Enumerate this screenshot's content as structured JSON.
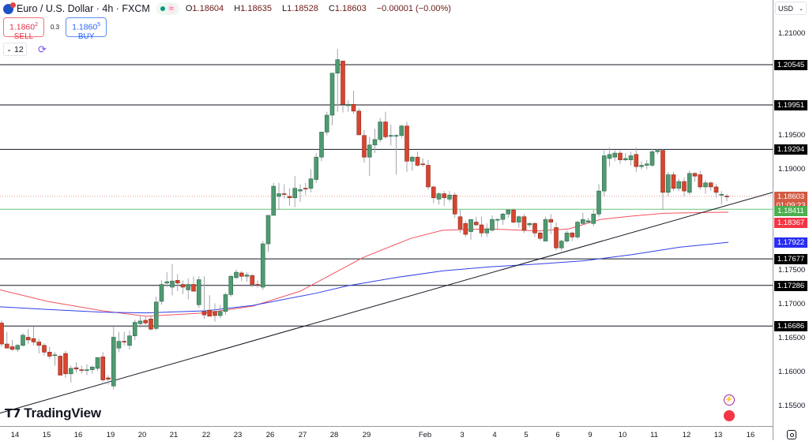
{
  "header": {
    "symbol_title": "Euro / U.S. Dollar · 4h · FXCM",
    "market_status_icon": "market-open-dot",
    "ohlc": {
      "o_label": "O",
      "o": "1.18604",
      "h_label": "H",
      "h": "1.18635",
      "l_label": "L",
      "l": "1.18528",
      "c_label": "C",
      "c": "1.18603",
      "change": "−0.00001 (−0.00%)"
    }
  },
  "trade": {
    "sell_price": "1.1860",
    "sell_sup": "2",
    "sell_label": "SELL",
    "spread": "0.3",
    "buy_price": "1.1860",
    "buy_sup": "5",
    "buy_label": "BUY"
  },
  "controls": {
    "lots": "12",
    "lots_icon": "chevron-down-icon",
    "sync_icon": "sync-icon"
  },
  "price_axis": {
    "currency": "USD",
    "ticks": [
      "1.21000",
      "1.19500",
      "1.19000",
      "1.17500",
      "1.17000",
      "1.16500",
      "1.16000",
      "1.15500"
    ]
  },
  "time_axis": {
    "labels": [
      "14",
      "15",
      "16",
      "19",
      "20",
      "21",
      "22",
      "23",
      "26",
      "27",
      "28",
      "29",
      "Feb",
      "3",
      "4",
      "5",
      "6",
      "9",
      "10",
      "11",
      "12",
      "13",
      "16"
    ]
  },
  "tags": {
    "current_price": "1.18603",
    "countdown": "01:09:23",
    "green_line": "1.18411",
    "ma_red": "1.18367",
    "ma_blue": "1.17922",
    "levels": [
      "1.20545",
      "1.19951",
      "1.19294",
      "1.17677",
      "1.17286",
      "1.16686"
    ]
  },
  "colors": {
    "up": "#4f9a72",
    "down": "#d8452f",
    "ma_fast": "#f2525f",
    "ma_slow": "#3140e8",
    "support_line": "#68c37a",
    "level_line": "#131722",
    "current_tag": "#d35a44"
  },
  "branding": {
    "logo_text": "TradingView"
  },
  "chart_data": {
    "type": "candlestick",
    "title": "Euro / U.S. Dollar · 4h · FXCM",
    "xlabel": "",
    "ylabel": "USD",
    "ylim": [
      1.153,
      1.213
    ],
    "x_tick_labels": [
      "14",
      "15",
      "16",
      "19",
      "20",
      "21",
      "22",
      "23",
      "26",
      "27",
      "28",
      "29",
      "Feb",
      "3",
      "4",
      "5",
      "6",
      "9",
      "10",
      "11",
      "12",
      "13",
      "16"
    ],
    "horizontal_levels": [
      1.20545,
      1.19951,
      1.19294,
      1.17677,
      1.17286,
      1.16686
    ],
    "support_level": 1.18411,
    "current_price": 1.18603,
    "moving_averages": [
      {
        "name": "MA fast (red)",
        "last": 1.18367,
        "points": [
          [
            0,
            1.1722
          ],
          [
            60,
            1.1705
          ],
          [
            130,
            1.1691
          ],
          [
            185,
            1.1683
          ],
          [
            260,
            1.1688
          ],
          [
            320,
            1.1698
          ],
          [
            380,
            1.172
          ],
          [
            420,
            1.1745
          ],
          [
            460,
            1.177
          ],
          [
            520,
            1.1798
          ],
          [
            560,
            1.181
          ],
          [
            620,
            1.1812
          ],
          [
            680,
            1.1809
          ],
          [
            720,
            1.1812
          ],
          [
            760,
            1.1826
          ],
          [
            800,
            1.1831
          ],
          [
            840,
            1.1835
          ],
          [
            880,
            1.1836
          ],
          [
            922,
            1.18367
          ]
        ]
      },
      {
        "name": "MA slow (blue)",
        "last": 1.17922,
        "points": [
          [
            0,
            1.1697
          ],
          [
            60,
            1.1693
          ],
          [
            130,
            1.1689
          ],
          [
            185,
            1.1688
          ],
          [
            260,
            1.1691
          ],
          [
            320,
            1.1699
          ],
          [
            400,
            1.1717
          ],
          [
            440,
            1.1728
          ],
          [
            500,
            1.174
          ],
          [
            560,
            1.175
          ],
          [
            620,
            1.1756
          ],
          [
            680,
            1.176
          ],
          [
            740,
            1.1765
          ],
          [
            800,
            1.1774
          ],
          [
            860,
            1.1785
          ],
          [
            922,
            1.17922
          ]
        ]
      }
    ],
    "trendline": {
      "x1": 0,
      "p1": 1.154,
      "x2": 978,
      "p2": 1.1866
    },
    "candles": [
      [
        1.1673,
        1.1677,
        1.1638,
        1.1642
      ],
      [
        1.1642,
        1.166,
        1.164,
        1.1636
      ],
      [
        1.1638,
        1.1648,
        1.1632,
        1.1634
      ],
      [
        1.1634,
        1.1642,
        1.163,
        1.164
      ],
      [
        1.164,
        1.1658,
        1.1638,
        1.1655
      ],
      [
        1.1652,
        1.1664,
        1.1642,
        1.1648
      ],
      [
        1.165,
        1.1668,
        1.164,
        1.1645
      ],
      [
        1.1645,
        1.165,
        1.1628,
        1.164
      ],
      [
        1.164,
        1.1643,
        1.1625,
        1.163
      ],
      [
        1.163,
        1.1638,
        1.162,
        1.1624
      ],
      [
        1.1626,
        1.163,
        1.161,
        1.1626
      ],
      [
        1.1624,
        1.1626,
        1.16,
        1.1596
      ],
      [
        1.1628,
        1.1632,
        1.1592,
        1.1598
      ],
      [
        1.1598,
        1.161,
        1.1585,
        1.1606
      ],
      [
        1.1607,
        1.1615,
        1.16,
        1.1605
      ],
      [
        1.1604,
        1.161,
        1.1598,
        1.1603
      ],
      [
        1.1604,
        1.1612,
        1.1596,
        1.1604
      ],
      [
        1.1604,
        1.161,
        1.1598,
        1.1608
      ],
      [
        1.1606,
        1.162,
        1.1602,
        1.1622
      ],
      [
        1.1623,
        1.163,
        1.1586,
        1.1589
      ],
      [
        1.1592,
        1.1596,
        1.1582,
        1.159
      ],
      [
        1.158,
        1.1668,
        1.1575,
        1.1652
      ],
      [
        1.1636,
        1.166,
        1.163,
        1.1646
      ],
      [
        1.1646,
        1.166,
        1.164,
        1.1645
      ],
      [
        1.164,
        1.1662,
        1.1634,
        1.1654
      ],
      [
        1.1654,
        1.1678,
        1.1648,
        1.1674
      ],
      [
        1.1672,
        1.1684,
        1.1666,
        1.1676
      ],
      [
        1.1677,
        1.1682,
        1.1666,
        1.1673
      ],
      [
        1.1679,
        1.1683,
        1.1662,
        1.1664
      ],
      [
        1.1665,
        1.1712,
        1.1662,
        1.1704
      ],
      [
        1.1705,
        1.1736,
        1.17,
        1.173
      ],
      [
        1.1732,
        1.1748,
        1.1726,
        1.1734
      ],
      [
        1.1726,
        1.176,
        1.1714,
        1.1735
      ],
      [
        1.1736,
        1.1745,
        1.172,
        1.1732
      ],
      [
        1.173,
        1.1736,
        1.1716,
        1.1726
      ],
      [
        1.1722,
        1.1739,
        1.1708,
        1.173
      ],
      [
        1.173,
        1.1742,
        1.172,
        1.172
      ],
      [
        1.17,
        1.1742,
        1.1695,
        1.1737
      ],
      [
        1.169,
        1.1742,
        1.1679,
        1.1685
      ],
      [
        1.1692,
        1.1714,
        1.1688,
        1.1683
      ],
      [
        1.169,
        1.1702,
        1.1675,
        1.1684
      ],
      [
        1.1684,
        1.17,
        1.168,
        1.169
      ],
      [
        1.169,
        1.1718,
        1.1685,
        1.1715
      ],
      [
        1.1715,
        1.1744,
        1.1712,
        1.1742
      ],
      [
        1.174,
        1.1752,
        1.1738,
        1.1748
      ],
      [
        1.1747,
        1.175,
        1.1735,
        1.1742
      ],
      [
        1.1742,
        1.1748,
        1.1734,
        1.1744
      ],
      [
        1.1743,
        1.1746,
        1.1726,
        1.173
      ],
      [
        1.173,
        1.1736,
        1.1725,
        1.1729
      ],
      [
        1.1726,
        1.1794,
        1.1722,
        1.179
      ],
      [
        1.179,
        1.1822,
        1.1778,
        1.1832
      ],
      [
        1.1832,
        1.188,
        1.1836,
        1.1875
      ],
      [
        1.186,
        1.188,
        1.184,
        1.1864
      ],
      [
        1.1864,
        1.1878,
        1.1857,
        1.1863
      ],
      [
        1.186,
        1.1872,
        1.1846,
        1.1858
      ],
      [
        1.1858,
        1.189,
        1.1844,
        1.1872
      ],
      [
        1.1868,
        1.1878,
        1.1852,
        1.187
      ],
      [
        1.1872,
        1.188,
        1.1862,
        1.1871
      ],
      [
        1.1872,
        1.19,
        1.1866,
        1.1886
      ],
      [
        1.1885,
        1.1924,
        1.188,
        1.1918
      ],
      [
        1.1918,
        1.1952,
        1.1912,
        1.1955
      ],
      [
        1.1955,
        1.1985,
        1.195,
        1.198
      ],
      [
        1.198,
        1.2006,
        1.1965,
        1.2042
      ],
      [
        1.2042,
        1.2078,
        1.1985,
        1.2062
      ],
      [
        1.206,
        1.2055,
        1.1984,
        1.1996
      ],
      [
        1.1994,
        1.2002,
        1.1985,
        1.1996
      ],
      [
        1.1996,
        1.2016,
        1.1982,
        1.1986
      ],
      [
        1.1986,
        1.199,
        1.195,
        1.1951
      ],
      [
        1.195,
        1.1958,
        1.191,
        1.1918
      ],
      [
        1.1918,
        1.1948,
        1.189,
        1.1936
      ],
      [
        1.1936,
        1.196,
        1.1924,
        1.1944
      ],
      [
        1.1944,
        1.1976,
        1.194,
        1.197
      ],
      [
        1.197,
        1.1985,
        1.1945,
        1.1948
      ],
      [
        1.195,
        1.1966,
        1.1935,
        1.195
      ],
      [
        1.195,
        1.1952,
        1.1892,
        1.195
      ],
      [
        1.195,
        1.1966,
        1.1946,
        1.1964
      ],
      [
        1.1964,
        1.197,
        1.1896,
        1.1912
      ],
      [
        1.1912,
        1.192,
        1.1898,
        1.1918
      ],
      [
        1.1918,
        1.1926,
        1.1904,
        1.1906
      ],
      [
        1.1908,
        1.1916,
        1.1904,
        1.1907
      ],
      [
        1.1906,
        1.1914,
        1.187,
        1.1874
      ],
      [
        1.1874,
        1.1876,
        1.185,
        1.1858
      ],
      [
        1.1856,
        1.1866,
        1.1848,
        1.1864
      ],
      [
        1.1864,
        1.1868,
        1.1846,
        1.1858
      ],
      [
        1.1856,
        1.1868,
        1.1852,
        1.1862
      ],
      [
        1.1862,
        1.1866,
        1.1828,
        1.1834
      ],
      [
        1.183,
        1.184,
        1.1806,
        1.1812
      ],
      [
        1.182,
        1.1824,
        1.18,
        1.1804
      ],
      [
        1.1808,
        1.1826,
        1.1796,
        1.1826
      ],
      [
        1.1822,
        1.183,
        1.1816,
        1.1818
      ],
      [
        1.1818,
        1.183,
        1.18,
        1.1806
      ],
      [
        1.1806,
        1.182,
        1.18,
        1.1812
      ],
      [
        1.181,
        1.1832,
        1.1808,
        1.1826
      ],
      [
        1.1826,
        1.1828,
        1.181,
        1.1826
      ],
      [
        1.1826,
        1.1836,
        1.1818,
        1.1834
      ],
      [
        1.1834,
        1.184,
        1.1828,
        1.184
      ],
      [
        1.184,
        1.1842,
        1.182,
        1.1822
      ],
      [
        1.1822,
        1.1832,
        1.1814,
        1.183
      ],
      [
        1.183,
        1.1834,
        1.1806,
        1.181
      ],
      [
        1.1818,
        1.1822,
        1.1814,
        1.182
      ],
      [
        1.182,
        1.1822,
        1.18,
        1.1806
      ],
      [
        1.1806,
        1.181,
        1.1795,
        1.1798
      ],
      [
        1.1794,
        1.183,
        1.1796,
        1.1826
      ],
      [
        1.1826,
        1.1834,
        1.1804,
        1.1822
      ],
      [
        1.1814,
        1.1822,
        1.178,
        1.1784
      ],
      [
        1.1784,
        1.1796,
        1.178,
        1.1794
      ],
      [
        1.1794,
        1.181,
        1.1792,
        1.1806
      ],
      [
        1.1806,
        1.1808,
        1.1794,
        1.18
      ],
      [
        1.18,
        1.1824,
        1.1797,
        1.1822
      ],
      [
        1.182,
        1.1836,
        1.1818,
        1.1826
      ],
      [
        1.1822,
        1.1828,
        1.182,
        1.1824
      ],
      [
        1.182,
        1.184,
        1.1816,
        1.1834
      ],
      [
        1.1834,
        1.1878,
        1.183,
        1.1868
      ],
      [
        1.1868,
        1.1928,
        1.186,
        1.192
      ],
      [
        1.1916,
        1.1932,
        1.1904,
        1.1922
      ],
      [
        1.1918,
        1.1928,
        1.1912,
        1.1924
      ],
      [
        1.1924,
        1.1928,
        1.1908,
        1.1914
      ],
      [
        1.1914,
        1.1924,
        1.1912,
        1.1916
      ],
      [
        1.1914,
        1.1926,
        1.1906,
        1.192
      ],
      [
        1.1922,
        1.1932,
        1.1896,
        1.1904
      ],
      [
        1.1904,
        1.1912,
        1.19,
        1.1906
      ],
      [
        1.1906,
        1.1914,
        1.19,
        1.1908
      ],
      [
        1.1906,
        1.193,
        1.1904,
        1.1926
      ],
      [
        1.1926,
        1.193,
        1.1922,
        1.1928
      ],
      [
        1.1928,
        1.193,
        1.184,
        1.1866
      ],
      [
        1.1866,
        1.1896,
        1.186,
        1.1892
      ],
      [
        1.1892,
        1.1896,
        1.1868,
        1.1872
      ],
      [
        1.1872,
        1.1886,
        1.1868,
        1.1882
      ],
      [
        1.1882,
        1.1888,
        1.186,
        1.1868
      ],
      [
        1.1866,
        1.1898,
        1.1862,
        1.1894
      ],
      [
        1.1894,
        1.1896,
        1.1882,
        1.189
      ],
      [
        1.1892,
        1.1898,
        1.187,
        1.1874
      ],
      [
        1.1874,
        1.1884,
        1.1864,
        1.188
      ],
      [
        1.188,
        1.1882,
        1.1868,
        1.1874
      ],
      [
        1.1874,
        1.1878,
        1.1858,
        1.1866
      ],
      [
        1.1862,
        1.1868,
        1.1848,
        1.1863
      ],
      [
        1.18604,
        1.18635,
        1.18528,
        1.18603
      ]
    ]
  }
}
